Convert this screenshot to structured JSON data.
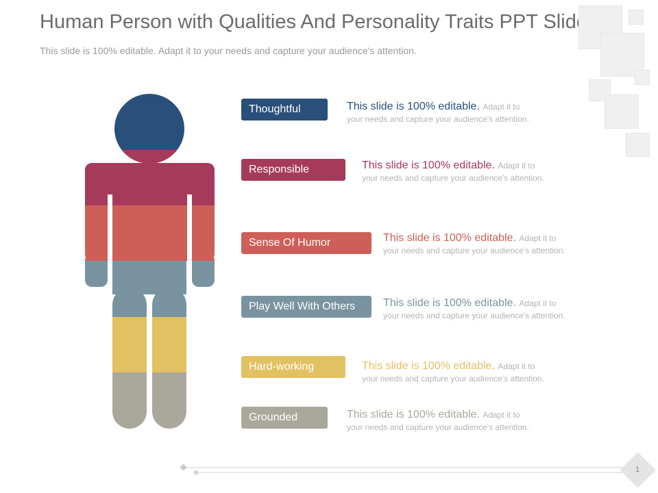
{
  "slide": {
    "title": "Human Person with Qualities And Personality Traits PPT Slide",
    "subtitle": "This slide is 100% editable. Adapt it to your needs and capture your audience's attention.",
    "page_number": "1"
  },
  "colors": {
    "thoughtful": "#2a4f7a",
    "responsible": "#a63a5b",
    "sense_of_humor": "#cd5f58",
    "play_well": "#7a93a0",
    "hard_working": "#e1c161",
    "grounded": "#aaa79b"
  },
  "traits": [
    {
      "label": "Thoughtful",
      "lead": "This slide is 100% editable.",
      "rest": "Adapt it to",
      "line2": "your needs and capture your audience's attention.",
      "color": "#2a4f7a"
    },
    {
      "label": "Responsible",
      "lead": "This slide is 100% editable.",
      "rest": "Adapt it to",
      "line2": "your needs and capture your audience's attention.",
      "color": "#a63a5b"
    },
    {
      "label": "Sense Of Humor",
      "lead": "This slide is 100% editable.",
      "rest": "Adapt it to",
      "line2": "your needs and capture your audience's attention.",
      "color": "#cd5f58"
    },
    {
      "label": "Play Well With Others",
      "lead": "This slide is 100% editable.",
      "rest": "Adapt it to",
      "line2": "your needs and capture your audience's attention.",
      "color": "#7a93a0"
    },
    {
      "label": "Hard-working",
      "lead": "This slide is 100% editable.",
      "rest": "Adapt it to",
      "line2": "your needs and capture your audience's attention.",
      "color": "#e1c161"
    },
    {
      "label": "Grounded",
      "lead": "This slide is 100% editable.",
      "rest": "Adapt it to",
      "line2": "your needs and capture your audience's attention.",
      "color": "#aaa79b"
    }
  ]
}
